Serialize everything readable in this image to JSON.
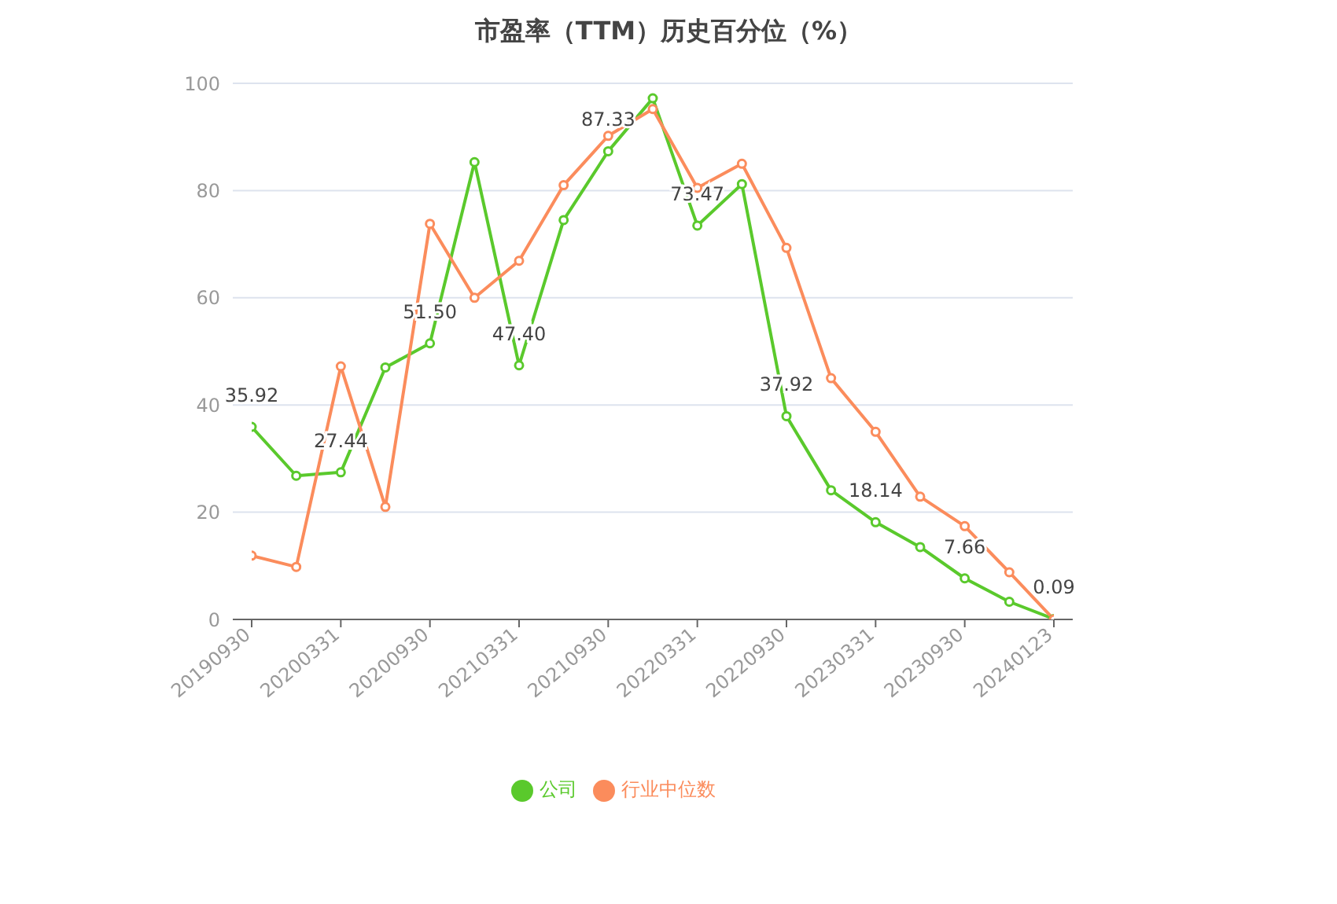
{
  "chart_data": {
    "type": "line",
    "title": "市盈率（TTM）历史百分位（%）",
    "categories": [
      "20190930",
      null,
      "20200331",
      null,
      "20200930",
      null,
      "20210331",
      null,
      "20210930",
      null,
      "20220331",
      null,
      "20220930",
      null,
      "20230331",
      null,
      "20230930",
      null,
      "20240123"
    ],
    "series": [
      {
        "name": "公司",
        "color": "#5ac92c",
        "values": [
          35.92,
          26.8,
          27.44,
          47,
          51.5,
          85.3,
          47.4,
          74.5,
          87.33,
          97.2,
          73.47,
          81.2,
          37.92,
          24.1,
          18.14,
          13.5,
          7.66,
          3.3,
          0.09
        ],
        "value_labels": [
          "35.92",
          null,
          "27.44",
          null,
          "51.50",
          null,
          "47.40",
          null,
          "87.33",
          null,
          "73.47",
          null,
          "37.92",
          null,
          "18.14",
          null,
          "7.66",
          null,
          "0.09"
        ]
      },
      {
        "name": "行业中位数",
        "color": "#fb8c5c",
        "values": [
          11.9,
          9.8,
          47.2,
          21,
          73.8,
          60,
          66.9,
          81,
          90.2,
          95.2,
          80.5,
          85,
          69.3,
          45,
          35,
          22.9,
          17.4,
          8.8,
          0
        ]
      }
    ],
    "ylim": [
      0,
      100
    ],
    "yticks": [
      0,
      20,
      40,
      60,
      80,
      100
    ],
    "grid": "y",
    "legend": "bottom",
    "marker": "circle",
    "line_style": "solid"
  }
}
